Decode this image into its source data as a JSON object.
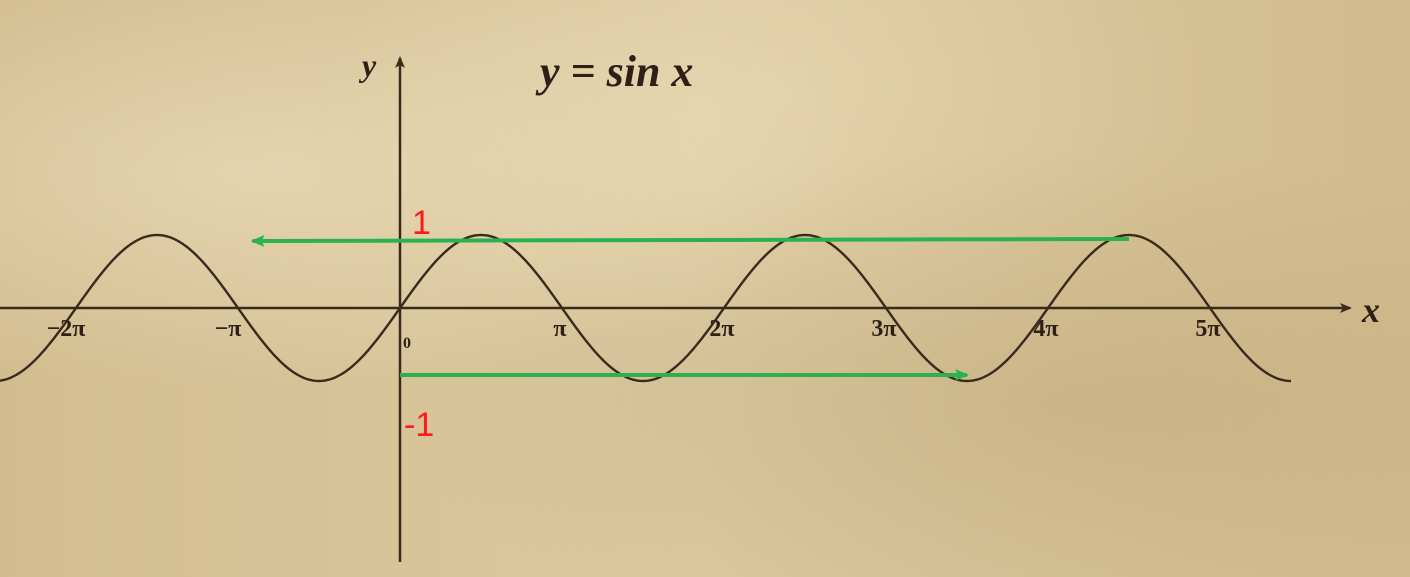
{
  "chart_data": {
    "type": "line",
    "title": "y = sin x",
    "xlabel": "x",
    "ylabel": "y",
    "origin_label": "0",
    "x_range_pi": [
      -2.5,
      5.5
    ],
    "ylim": [
      -1,
      1
    ],
    "grid": false,
    "x_ticks": [
      {
        "value_pi": -2,
        "label": "−2π"
      },
      {
        "value_pi": -1,
        "label": "−π"
      },
      {
        "value_pi": 1,
        "label": "π"
      },
      {
        "value_pi": 2,
        "label": "2π"
      },
      {
        "value_pi": 3,
        "label": "3π"
      },
      {
        "value_pi": 4,
        "label": "4π"
      },
      {
        "value_pi": 5,
        "label": "5π"
      }
    ],
    "series": [
      {
        "function": "sin",
        "color": "#3a2a1c"
      }
    ],
    "annotations": [
      {
        "label": "1",
        "y": 1,
        "color": "#ff1a1a"
      },
      {
        "label": "-1",
        "y": -1,
        "color": "#ff1a1a"
      }
    ],
    "arrows": [
      {
        "from_x_pi": 4.5,
        "to_x_pi": -0.91,
        "y": 1,
        "color": "#2bb24c"
      },
      {
        "from_x_pi": 0,
        "to_x_pi": 3.5,
        "y": -1,
        "color": "#2bb24c"
      }
    ]
  }
}
